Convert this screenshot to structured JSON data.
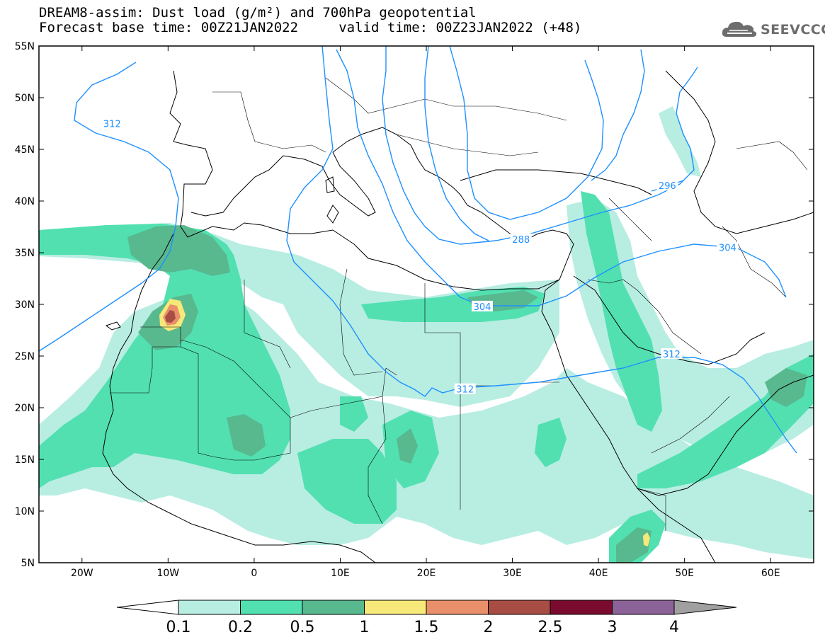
{
  "title": {
    "line1": "DREAM8-assim: Dust load (g/m²) and 700hPa geopotential",
    "line2": "Forecast base time: 00Z21JAN2022     valid time: 00Z23JAN2022 (+48)"
  },
  "logo": {
    "text": "SEEVCCC",
    "icon": "cloud-logo-icon"
  },
  "map": {
    "lon_range": [
      -25,
      65
    ],
    "lat_range": [
      5,
      55
    ],
    "lat_ticks": [
      "55N",
      "50N",
      "45N",
      "40N",
      "35N",
      "30N",
      "25N",
      "20N",
      "15N",
      "10N",
      "5N"
    ],
    "lon_ticks": [
      "20W",
      "10W",
      "0",
      "10E",
      "20E",
      "30E",
      "40E",
      "50E",
      "60E"
    ]
  },
  "contours": {
    "color": "#1e90ff",
    "labels": [
      {
        "text": "312",
        "lon": -16.5,
        "lat": 47.5
      },
      {
        "text": "304",
        "lon": 26.5,
        "lat": 29.8
      },
      {
        "text": "312",
        "lon": 24.5,
        "lat": 21.8
      },
      {
        "text": "312",
        "lon": 48.5,
        "lat": 25.2
      },
      {
        "text": "304",
        "lon": 55.0,
        "lat": 35.5
      },
      {
        "text": "288",
        "lon": 31.0,
        "lat": 36.3
      },
      {
        "text": "296",
        "lon": 48.0,
        "lat": 41.5
      }
    ]
  },
  "colorbar": {
    "labels": [
      "0.1",
      "0.2",
      "0.5",
      "1",
      "1.5",
      "2",
      "2.5",
      "3",
      "4"
    ],
    "colors": [
      "#b8ede2",
      "#52e0b1",
      "#58b88e",
      "#f6e97a",
      "#e9906a",
      "#a84d44",
      "#7a0b2e",
      "#8c6398"
    ],
    "over_color": "#a0a0a0",
    "under_color": "#ffffff"
  }
}
